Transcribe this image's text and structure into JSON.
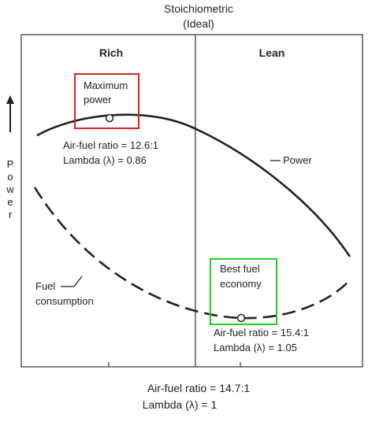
{
  "header": {
    "line1": "Stoichiometric",
    "line2": "(Ideal)"
  },
  "regions": {
    "rich": "Rich",
    "lean": "Lean"
  },
  "y_axis": {
    "letters": [
      "P",
      "o",
      "w",
      "e",
      "r"
    ]
  },
  "max_power": {
    "box_line1": "Maximum",
    "box_line2": "power",
    "ratio_text": "Air-fuel ratio = 12.6:1",
    "lambda_text": "Lambda (λ) = 0.86",
    "box_color": "#e02020"
  },
  "best_economy": {
    "box_line1": "Best fuel",
    "box_line2": "economy",
    "ratio_text": "Air-fuel ratio = 15.4:1",
    "lambda_text": "Lambda (λ) = 1.05",
    "box_color": "#22cc22"
  },
  "power_label": "Power",
  "fuel_label_line1": "Fuel",
  "fuel_label_line2": "consumption",
  "stoich": {
    "ratio_text": "Air-fuel ratio = 14.7:1",
    "lambda_text": "Lambda (λ) = 1"
  },
  "colors": {
    "curve": "#222222",
    "frame": "#333333"
  }
}
